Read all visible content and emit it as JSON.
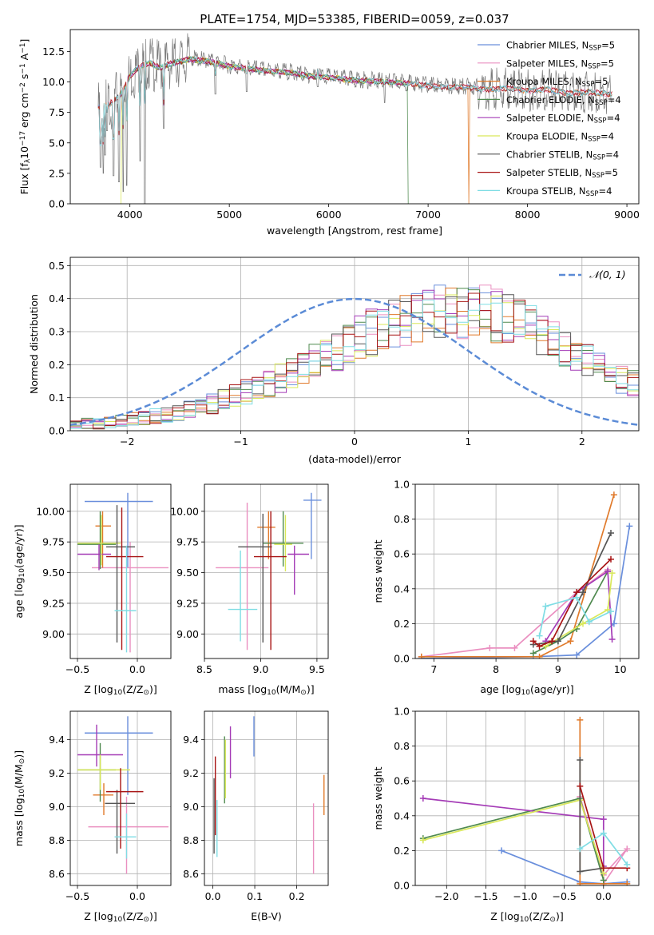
{
  "figure_title": "PLATE=1754, MJD=53385, FIBERID=0059, z=0.037",
  "series_colors": [
    "#6a8fdc",
    "#ea8fc0",
    "#e07a2b",
    "#4f8a4f",
    "#a43bb6",
    "#d9e85a",
    "#555555",
    "#a81414",
    "#7fdde4"
  ],
  "spectrum_legend": [
    "Chabrier MILES, N<sub>SSP</sub>=5",
    "Salpeter MILES, N<sub>SSP</sub>=5",
    "Kroupa MILES, N<sub>SSP</sub>=5",
    "Chabrier ELODIE, N<sub>SSP</sub>=4",
    "Salpeter ELODIE, N<sub>SSP</sub>=4",
    "Kroupa ELODIE, N<sub>SSP</sub>=4",
    "Chabrier STELIB, N<sub>SSP</sub>=4",
    "Salpeter STELIB, N<sub>SSP</sub>=5",
    "Kroupa STELIB, N<sub>SSP</sub>=4"
  ],
  "chart_data": [
    {
      "id": "spectrum",
      "type": "line",
      "xlabel": "wavelength [Angstrom, rest frame]",
      "ylabel": "Flux [f_λ10^-17 erg cm^-2 s^-1 A^-1]",
      "xlim": [
        3400,
        9120
      ],
      "ylim": [
        0,
        14.3
      ],
      "xticks": [
        4000,
        5000,
        6000,
        7000,
        8000,
        9000
      ],
      "yticks": [
        0.0,
        2.5,
        5.0,
        7.5,
        10.0,
        12.5
      ],
      "legend_position": "upper right",
      "continuum": [
        [
          3680,
          8.0
        ],
        [
          3800,
          8.4
        ],
        [
          3900,
          9.0
        ],
        [
          4000,
          10.6
        ],
        [
          4100,
          11.4
        ],
        [
          4200,
          11.7
        ],
        [
          4300,
          11.3
        ],
        [
          4400,
          11.6
        ],
        [
          4600,
          12.0
        ],
        [
          4800,
          11.8
        ],
        [
          5000,
          11.4
        ],
        [
          5200,
          11.2
        ],
        [
          5400,
          11.0
        ],
        [
          5600,
          10.9
        ],
        [
          5800,
          10.6
        ],
        [
          6000,
          10.5
        ],
        [
          6200,
          10.3
        ],
        [
          6400,
          10.2
        ],
        [
          6600,
          10.1
        ],
        [
          6800,
          10.0
        ],
        [
          7000,
          9.8
        ],
        [
          7200,
          9.7
        ],
        [
          7400,
          9.7
        ],
        [
          7600,
          9.5
        ],
        [
          7800,
          9.6
        ],
        [
          8000,
          9.4
        ],
        [
          8200,
          9.5
        ],
        [
          8400,
          9.2
        ],
        [
          8600,
          9.3
        ],
        [
          8850,
          9.1
        ]
      ],
      "absorption_features": [
        [
          3705,
          3.0
        ],
        [
          3720,
          5.5
        ],
        [
          3733,
          2.5
        ],
        [
          3750,
          4.0
        ],
        [
          3771,
          6.0
        ],
        [
          3798,
          6.5
        ],
        [
          3835,
          2.3
        ],
        [
          3889,
          1.8
        ],
        [
          3933,
          1.0
        ],
        [
          3968,
          1.5
        ],
        [
          4102,
          3.5
        ],
        [
          4150,
          0.0
        ],
        [
          4340,
          6.2
        ],
        [
          4861,
          9.0
        ],
        [
          5175,
          9.2
        ],
        [
          5890,
          9.6
        ],
        [
          6563,
          8.3
        ]
      ],
      "model_dropouts": [
        {
          "series": "Kroupa ELODIE",
          "x": 3905
        },
        {
          "series": "Chabrier ELODIE",
          "x": 6805
        },
        {
          "series": "Kroupa MILES",
          "x": 7410
        }
      ]
    },
    {
      "id": "residuals",
      "type": "histogram",
      "xlabel": "(data-model)/error",
      "ylabel": "Normed distribution",
      "xlim": [
        -2.5,
        2.5
      ],
      "ylim": [
        0,
        0.525
      ],
      "xticks": [
        -2,
        -1,
        0,
        1,
        2
      ],
      "yticks": [
        0.0,
        0.1,
        0.2,
        0.3,
        0.4,
        0.5
      ],
      "bin_width": 0.1,
      "bin_start": -2.5,
      "reference_curve": {
        "label": "𝒩(0, 1)",
        "mean": 0,
        "sigma": 1,
        "style": "dashed"
      },
      "mean_profile": [
        0.025,
        0.028,
        0.03,
        0.035,
        0.04,
        0.045,
        0.05,
        0.055,
        0.06,
        0.068,
        0.075,
        0.085,
        0.095,
        0.11,
        0.12,
        0.135,
        0.15,
        0.165,
        0.18,
        0.2,
        0.215,
        0.235,
        0.255,
        0.27,
        0.29,
        0.31,
        0.33,
        0.345,
        0.36,
        0.37,
        0.385,
        0.395,
        0.4,
        0.405,
        0.4,
        0.395,
        0.395,
        0.385,
        0.37,
        0.355,
        0.34,
        0.325,
        0.305,
        0.285,
        0.26,
        0.24,
        0.215,
        0.195,
        0.175,
        0.16,
        0.14,
        0.12,
        0.105,
        0.095,
        0.08,
        0.07,
        0.06,
        0.05,
        0.045,
        0.04,
        0.035,
        0.03,
        0.03,
        0.025,
        0.025,
        0.028,
        0.03,
        0.03,
        0.028,
        0.025,
        0.025,
        0.025,
        0.025,
        0.025,
        0.025,
        0.025,
        0.025,
        0.025,
        0.025,
        0.025
      ]
    },
    {
      "id": "age_vs_Z",
      "type": "scatter",
      "xlabel": "Z [log10(Z/Z☉)]",
      "ylabel": "age  [log10(age/yr)]",
      "xlim": [
        -0.56,
        0.28
      ],
      "ylim": [
        8.8,
        10.22
      ],
      "xticks": [
        -0.5,
        0.0
      ],
      "yticks": [
        9.0,
        9.25,
        9.5,
        9.75,
        10.0
      ],
      "points": [
        {
          "x": -0.08,
          "y": 10.08,
          "xlo": -0.44,
          "xhi": 0.13,
          "ylo": 9.54,
          "yhi": 10.15
        },
        {
          "x": -0.06,
          "y": 9.54,
          "xlo": -0.38,
          "xhi": 0.26,
          "ylo": 8.85,
          "yhi": 9.75
        },
        {
          "x": -0.29,
          "y": 9.88,
          "xlo": -0.35,
          "xhi": -0.22,
          "ylo": 9.54,
          "yhi": 10.0
        },
        {
          "x": -0.31,
          "y": 9.73,
          "xlo": -0.5,
          "xhi": -0.18,
          "ylo": 9.53,
          "yhi": 10.0
        },
        {
          "x": -0.32,
          "y": 9.65,
          "xlo": -0.5,
          "xhi": -0.22,
          "ylo": 9.52,
          "yhi": 9.73
        },
        {
          "x": -0.3,
          "y": 9.74,
          "xlo": -0.5,
          "xhi": -0.14,
          "ylo": 9.56,
          "yhi": 9.97
        },
        {
          "x": -0.17,
          "y": 9.71,
          "xlo": -0.26,
          "xhi": -0.02,
          "ylo": 8.93,
          "yhi": 10.05
        },
        {
          "x": -0.13,
          "y": 9.63,
          "xlo": -0.26,
          "xhi": 0.05,
          "ylo": 8.87,
          "yhi": 10.03
        },
        {
          "x": -0.09,
          "y": 9.19,
          "xlo": -0.19,
          "xhi": -0.01,
          "ylo": 8.85,
          "yhi": 9.72
        }
      ]
    },
    {
      "id": "age_vs_mass",
      "type": "scatter",
      "xlabel": "mass [log10(M/M☉)]",
      "ylabel": "",
      "xlim": [
        8.5,
        9.6
      ],
      "ylim": [
        8.8,
        10.22
      ],
      "xticks": [
        8.5,
        9.0,
        9.5
      ],
      "yticks": [
        9.0,
        9.25,
        9.5,
        9.75,
        10.0
      ],
      "points": [
        {
          "x": 9.45,
          "y": 10.09,
          "xlo": 9.38,
          "xhi": 9.54,
          "ylo": 9.61,
          "yhi": 10.15
        },
        {
          "x": 8.88,
          "y": 9.54,
          "xlo": 8.6,
          "xhi": 9.07,
          "ylo": 8.87,
          "yhi": 10.07
        },
        {
          "x": 9.07,
          "y": 9.87,
          "xlo": 8.97,
          "xhi": 9.13,
          "ylo": 9.61,
          "yhi": 10.0
        },
        {
          "x": 9.2,
          "y": 9.74,
          "xlo": 9.02,
          "xhi": 9.38,
          "ylo": 9.55,
          "yhi": 10.0
        },
        {
          "x": 9.3,
          "y": 9.65,
          "xlo": 9.24,
          "xhi": 9.43,
          "ylo": 9.32,
          "yhi": 9.72
        },
        {
          "x": 9.22,
          "y": 9.73,
          "xlo": 9.12,
          "xhi": 9.28,
          "ylo": 9.51,
          "yhi": 9.97
        },
        {
          "x": 9.02,
          "y": 9.71,
          "xlo": 8.8,
          "xhi": 9.1,
          "ylo": 8.93,
          "yhi": 9.98
        },
        {
          "x": 9.09,
          "y": 9.63,
          "xlo": 8.94,
          "xhi": 9.23,
          "ylo": 8.87,
          "yhi": 10.0
        },
        {
          "x": 8.82,
          "y": 9.2,
          "xlo": 8.71,
          "xhi": 8.97,
          "ylo": 8.94,
          "yhi": 9.68
        }
      ]
    },
    {
      "id": "mass_weight_vs_age",
      "type": "line",
      "xlabel": "age  [log10(age/yr)]",
      "ylabel": "mass weight",
      "xlim": [
        6.7,
        10.3
      ],
      "ylim": [
        0,
        1.0
      ],
      "xticks": [
        7,
        8,
        9,
        10
      ],
      "yticks": [
        0.0,
        0.2,
        0.4,
        0.6,
        0.8,
        1.0
      ],
      "series": [
        {
          "name": "Chabrier MILES",
          "points": [
            [
              6.8,
              0.0
            ],
            [
              8.6,
              0.01
            ],
            [
              9.3,
              0.02
            ],
            [
              9.9,
              0.2
            ],
            [
              10.15,
              0.76
            ]
          ]
        },
        {
          "name": "Salpeter MILES",
          "points": [
            [
              6.8,
              0.01
            ],
            [
              7.9,
              0.06
            ],
            [
              8.3,
              0.06
            ],
            [
              9.3,
              0.38
            ],
            [
              9.8,
              0.51
            ]
          ]
        },
        {
          "name": "Kroupa MILES",
          "points": [
            [
              6.8,
              0.01
            ],
            [
              8.7,
              0.01
            ],
            [
              9.2,
              0.1
            ],
            [
              9.9,
              0.94
            ]
          ]
        },
        {
          "name": "Chabrier ELODIE",
          "points": [
            [
              8.6,
              0.03
            ],
            [
              9.0,
              0.1
            ],
            [
              9.3,
              0.17
            ],
            [
              9.8,
              0.5
            ]
          ]
        },
        {
          "name": "Salpeter ELODIE",
          "points": [
            [
              8.8,
              0.1
            ],
            [
              9.3,
              0.38
            ],
            [
              9.8,
              0.5
            ],
            [
              9.87,
              0.11
            ]
          ]
        },
        {
          "name": "Kroupa ELODIE",
          "points": [
            [
              8.8,
              0.07
            ],
            [
              9.4,
              0.2
            ],
            [
              9.8,
              0.28
            ],
            [
              9.87,
              0.49
            ]
          ]
        },
        {
          "name": "Chabrier STELIB",
          "points": [
            [
              8.6,
              0.08
            ],
            [
              9.0,
              0.1
            ],
            [
              9.4,
              0.38
            ],
            [
              9.85,
              0.72
            ]
          ]
        },
        {
          "name": "Salpeter STELIB",
          "points": [
            [
              8.6,
              0.1
            ],
            [
              8.7,
              0.07
            ],
            [
              8.9,
              0.1
            ],
            [
              9.3,
              0.38
            ],
            [
              9.85,
              0.57
            ]
          ]
        },
        {
          "name": "Kroupa STELIB",
          "points": [
            [
              8.7,
              0.13
            ],
            [
              8.8,
              0.3
            ],
            [
              9.3,
              0.35
            ],
            [
              9.5,
              0.21
            ],
            [
              9.85,
              0.27
            ]
          ]
        }
      ]
    },
    {
      "id": "mass_vs_Z",
      "type": "scatter",
      "xlabel": "Z [log10(Z/Z☉)]",
      "ylabel": "mass [log10(M/M☉)]",
      "xlim": [
        -0.56,
        0.28
      ],
      "ylim": [
        8.53,
        9.57
      ],
      "xticks": [
        -0.5,
        0.0
      ],
      "yticks": [
        8.6,
        8.8,
        9.0,
        9.2,
        9.4
      ],
      "points": [
        {
          "x": -0.08,
          "y": 9.44,
          "xlo": -0.44,
          "xhi": 0.13,
          "ylo": 9.07,
          "yhi": 9.54
        },
        {
          "x": -0.09,
          "y": 8.88,
          "xlo": -0.41,
          "xhi": 0.26,
          "ylo": 8.6,
          "yhi": 9.06
        },
        {
          "x": -0.28,
          "y": 9.07,
          "xlo": -0.37,
          "xhi": -0.2,
          "ylo": 8.95,
          "yhi": 9.14
        },
        {
          "x": -0.31,
          "y": 9.22,
          "xlo": -0.5,
          "xhi": -0.18,
          "ylo": 9.03,
          "yhi": 9.38
        },
        {
          "x": -0.34,
          "y": 9.31,
          "xlo": -0.5,
          "xhi": -0.12,
          "ylo": 9.24,
          "yhi": 9.49
        },
        {
          "x": -0.31,
          "y": 9.22,
          "xlo": -0.5,
          "xhi": -0.06,
          "ylo": 9.1,
          "yhi": 9.31
        },
        {
          "x": -0.17,
          "y": 9.02,
          "xlo": -0.27,
          "xhi": -0.02,
          "ylo": 8.72,
          "yhi": 9.1
        },
        {
          "x": -0.14,
          "y": 9.09,
          "xlo": -0.26,
          "xhi": 0.05,
          "ylo": 8.75,
          "yhi": 9.23
        },
        {
          "x": -0.09,
          "y": 8.82,
          "xlo": -0.19,
          "xhi": -0.01,
          "ylo": 8.69,
          "yhi": 8.96
        }
      ]
    },
    {
      "id": "mass_vs_EBV",
      "type": "scatter",
      "xlabel": "E(B-V)",
      "ylabel": "",
      "xlim": [
        -0.02,
        0.275
      ],
      "ylim": [
        8.53,
        9.57
      ],
      "xticks": [
        0.0,
        0.1,
        0.2
      ],
      "yticks": [
        8.6,
        8.8,
        9.0,
        9.2,
        9.4
      ],
      "points": [
        {
          "x": 0.098,
          "y": 9.43,
          "ylo": 9.3,
          "yhi": 9.54
        },
        {
          "x": 0.24,
          "y": 8.9,
          "ylo": 8.6,
          "yhi": 9.02
        },
        {
          "x": 0.265,
          "y": 9.07,
          "ylo": 8.95,
          "yhi": 9.19
        },
        {
          "x": 0.028,
          "y": 9.22,
          "ylo": 9.02,
          "yhi": 9.42
        },
        {
          "x": 0.042,
          "y": 9.3,
          "ylo": 9.17,
          "yhi": 9.48
        },
        {
          "x": 0.03,
          "y": 9.22,
          "ylo": 9.05,
          "yhi": 9.4
        },
        {
          "x": 0.003,
          "y": 9.05,
          "ylo": 8.72,
          "yhi": 9.17
        },
        {
          "x": 0.006,
          "y": 9.09,
          "ylo": 8.83,
          "yhi": 9.3
        },
        {
          "x": 0.01,
          "y": 8.81,
          "ylo": 8.7,
          "yhi": 9.04
        }
      ]
    },
    {
      "id": "mass_weight_vs_Z",
      "type": "line",
      "xlabel": "Z [log10(Z/Z☉)]",
      "ylabel": "mass weight",
      "xlim": [
        -2.4,
        0.45
      ],
      "ylim": [
        0,
        1.0
      ],
      "xticks": [
        -2.0,
        -1.5,
        -1.0,
        -0.5,
        0.0
      ],
      "yticks": [
        0.0,
        0.2,
        0.4,
        0.6,
        0.8,
        1.0
      ],
      "series": [
        {
          "name": "Chabrier MILES",
          "points": [
            [
              -1.3,
              0.2
            ],
            [
              -0.3,
              0.02
            ],
            [
              0.0,
              0.01
            ],
            [
              0.3,
              0.02
            ]
          ]
        },
        {
          "name": "Salpeter MILES",
          "points": [
            [
              -0.3,
              0.51
            ],
            [
              0.0,
              0.06
            ],
            [
              0.3,
              0.21
            ],
            [
              0.0,
              0.01
            ]
          ]
        },
        {
          "name": "Kroupa MILES",
          "points": [
            [
              -0.3,
              0.95
            ],
            [
              -0.3,
              0.01
            ],
            [
              0.0,
              0.01
            ],
            [
              0.3,
              0.01
            ]
          ]
        },
        {
          "name": "Chabrier ELODIE",
          "points": [
            [
              -2.3,
              0.27
            ],
            [
              -0.3,
              0.5
            ],
            [
              0.0,
              0.03
            ]
          ]
        },
        {
          "name": "Salpeter ELODIE",
          "points": [
            [
              -2.3,
              0.5
            ],
            [
              0.0,
              0.38
            ],
            [
              0.0,
              0.11
            ]
          ]
        },
        {
          "name": "Kroupa ELODIE",
          "points": [
            [
              -2.3,
              0.26
            ],
            [
              -0.3,
              0.49
            ],
            [
              0.0,
              0.07
            ]
          ]
        },
        {
          "name": "Chabrier STELIB",
          "points": [
            [
              -0.3,
              0.72
            ],
            [
              -0.3,
              0.08
            ],
            [
              0.0,
              0.1
            ]
          ]
        },
        {
          "name": "Salpeter STELIB",
          "points": [
            [
              -0.3,
              0.57
            ],
            [
              0.0,
              0.1
            ],
            [
              0.3,
              0.1
            ]
          ]
        },
        {
          "name": "Kroupa STELIB",
          "points": [
            [
              -0.3,
              0.21
            ],
            [
              0.0,
              0.3
            ],
            [
              0.3,
              0.12
            ]
          ]
        }
      ]
    }
  ]
}
